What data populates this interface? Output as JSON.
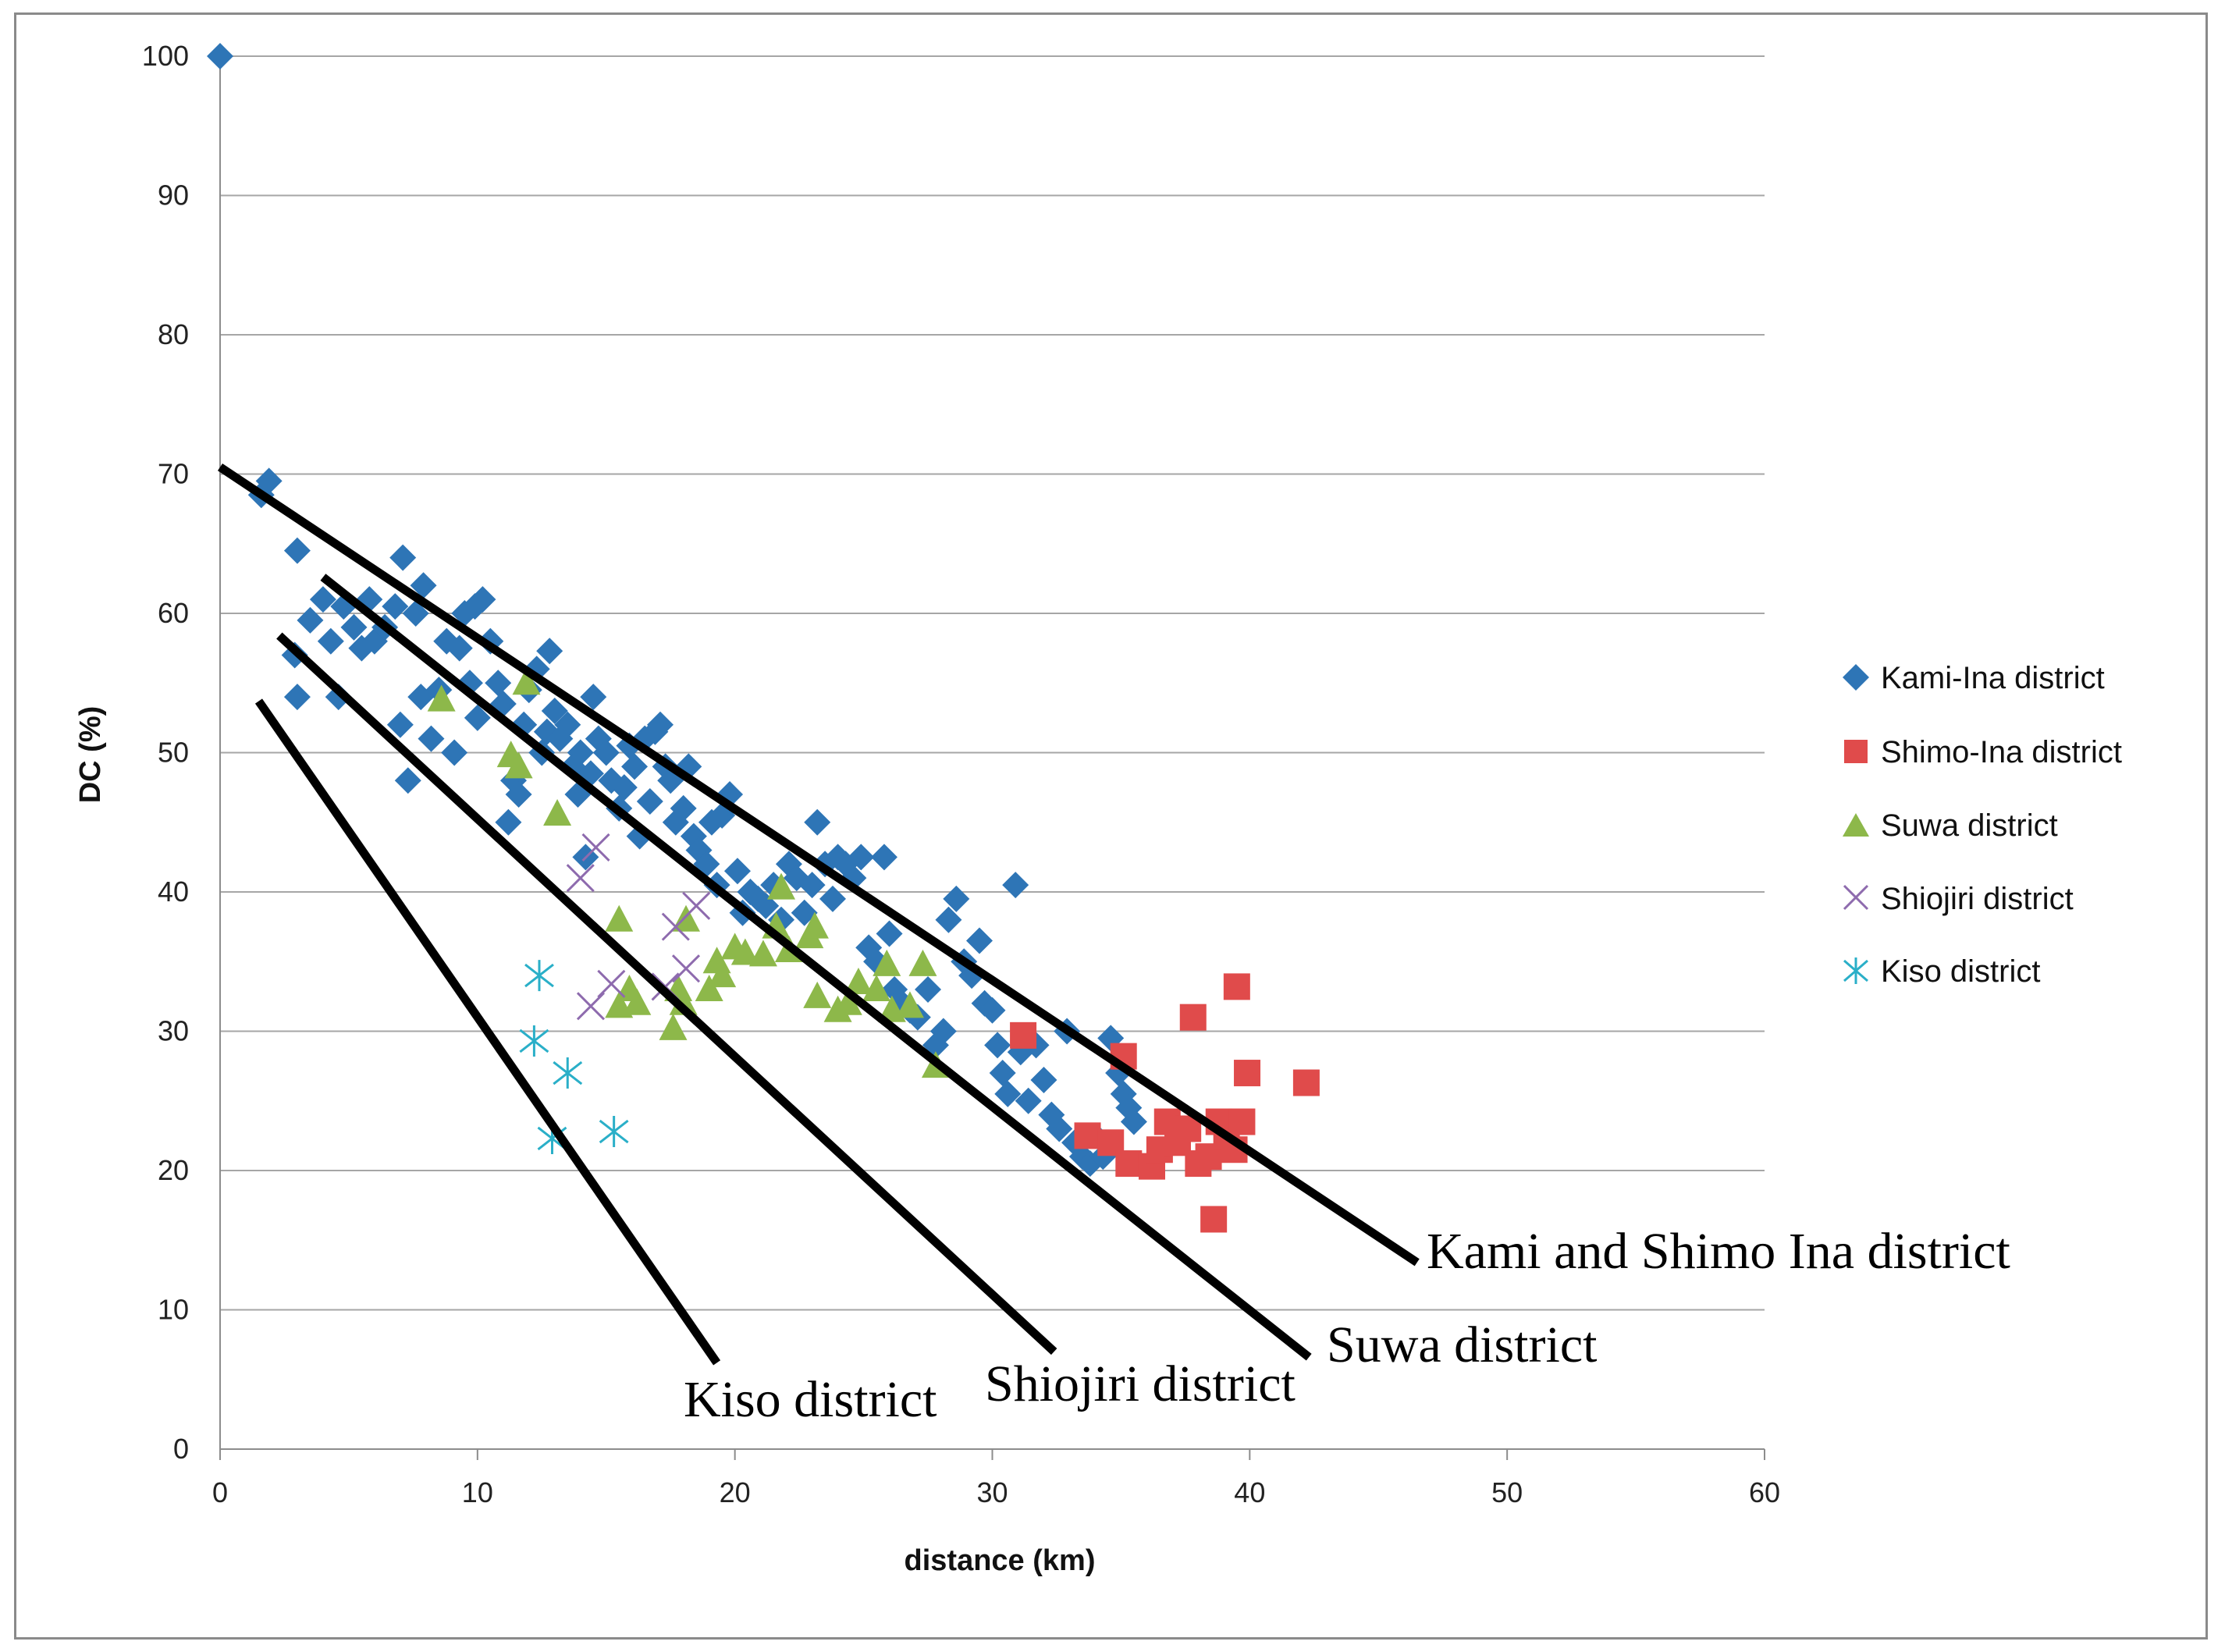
{
  "chart_data": {
    "type": "scatter",
    "title": "",
    "xlabel": "distance (km)",
    "ylabel": "DC (%)",
    "xlim": [
      0,
      60
    ],
    "ylim": [
      0,
      100
    ],
    "x_ticks": [
      "0",
      "10",
      "20",
      "30",
      "40",
      "50",
      "60"
    ],
    "y_ticks": [
      "0",
      "10",
      "20",
      "30",
      "40",
      "50",
      "60",
      "70",
      "80",
      "90",
      "100"
    ],
    "grid": "horizontal",
    "legend_position": "right",
    "series": [
      {
        "name": "Kami-Ina district",
        "marker": "diamond",
        "color": "#2E75B6",
        "points": [
          [
            0,
            100
          ],
          [
            1.6,
            68.5
          ],
          [
            1.9,
            69.5
          ],
          [
            3,
            64.5
          ],
          [
            2.9,
            57
          ],
          [
            3,
            54
          ],
          [
            3.5,
            59.5
          ],
          [
            4,
            61
          ],
          [
            4.3,
            58
          ],
          [
            4.6,
            54
          ],
          [
            4.8,
            60.5
          ],
          [
            5.2,
            59
          ],
          [
            5.5,
            57.5
          ],
          [
            5.8,
            61
          ],
          [
            6,
            58
          ],
          [
            6.4,
            59
          ],
          [
            6.8,
            60.5
          ],
          [
            7.1,
            64
          ],
          [
            7,
            52
          ],
          [
            7.3,
            48
          ],
          [
            7.6,
            60
          ],
          [
            7.8,
            54
          ],
          [
            7.9,
            62
          ],
          [
            8.2,
            51
          ],
          [
            8.5,
            54.5
          ],
          [
            8.8,
            58
          ],
          [
            9.1,
            50
          ],
          [
            9.3,
            57.5
          ],
          [
            9.5,
            60
          ],
          [
            9.7,
            55
          ],
          [
            9.9,
            60.5
          ],
          [
            10,
            52.5
          ],
          [
            10.2,
            61
          ],
          [
            10.5,
            58
          ],
          [
            10.8,
            55
          ],
          [
            11,
            53.5
          ],
          [
            11.2,
            45
          ],
          [
            11.4,
            48
          ],
          [
            11.6,
            47
          ],
          [
            11.8,
            52
          ],
          [
            12,
            54.5
          ],
          [
            12.3,
            56
          ],
          [
            12.5,
            50
          ],
          [
            12.7,
            51.5
          ],
          [
            12.8,
            57.3
          ],
          [
            13,
            53
          ],
          [
            13.2,
            51
          ],
          [
            13.5,
            52
          ],
          [
            13.7,
            49
          ],
          [
            13.9,
            47
          ],
          [
            14,
            50
          ],
          [
            14.2,
            42.5
          ],
          [
            14.4,
            48.5
          ],
          [
            14.5,
            54
          ],
          [
            14.7,
            51
          ],
          [
            15,
            50
          ],
          [
            15.2,
            48
          ],
          [
            15.5,
            46
          ],
          [
            15.7,
            47.5
          ],
          [
            15.9,
            50.5
          ],
          [
            16.1,
            49
          ],
          [
            16.3,
            44
          ],
          [
            16.5,
            51
          ],
          [
            16.7,
            46.5
          ],
          [
            16.9,
            51.5
          ],
          [
            17.1,
            52
          ],
          [
            17.3,
            49
          ],
          [
            17.5,
            48
          ],
          [
            17.7,
            45
          ],
          [
            18,
            46
          ],
          [
            18.2,
            49
          ],
          [
            18.4,
            44
          ],
          [
            18.6,
            43
          ],
          [
            18.9,
            42
          ],
          [
            19.1,
            45
          ],
          [
            19.3,
            40.5
          ],
          [
            19.5,
            45.5
          ],
          [
            19.8,
            47
          ],
          [
            20.1,
            41.5
          ],
          [
            20.3,
            38.5
          ],
          [
            20.6,
            40
          ],
          [
            20.9,
            39.5
          ],
          [
            21.2,
            39
          ],
          [
            21.5,
            40.5
          ],
          [
            21.8,
            38
          ],
          [
            22.1,
            42
          ],
          [
            22.4,
            41
          ],
          [
            22.7,
            38.5
          ],
          [
            23,
            40.5
          ],
          [
            23.2,
            45
          ],
          [
            23.5,
            42
          ],
          [
            23.8,
            39.5
          ],
          [
            24,
            42.5
          ],
          [
            24.3,
            42
          ],
          [
            24.6,
            41
          ],
          [
            24.9,
            42.5
          ],
          [
            25.2,
            36
          ],
          [
            25.5,
            35
          ],
          [
            25.8,
            42.5
          ],
          [
            26,
            37
          ],
          [
            26.2,
            33
          ],
          [
            26.5,
            32
          ],
          [
            26.8,
            31.5
          ],
          [
            27.1,
            31
          ],
          [
            27.5,
            33
          ],
          [
            27.8,
            29
          ],
          [
            28.1,
            30
          ],
          [
            28.3,
            38
          ],
          [
            28.6,
            39.5
          ],
          [
            28.9,
            35
          ],
          [
            29.2,
            34
          ],
          [
            29.5,
            36.5
          ],
          [
            29.7,
            32
          ],
          [
            30,
            31.5
          ],
          [
            30.2,
            29
          ],
          [
            30.4,
            27
          ],
          [
            30.6,
            25.5
          ],
          [
            30.9,
            40.5
          ],
          [
            31.1,
            28.5
          ],
          [
            31.4,
            25
          ],
          [
            31.7,
            29
          ],
          [
            32,
            26.5
          ],
          [
            32.3,
            24
          ],
          [
            32.6,
            23
          ],
          [
            32.9,
            30
          ],
          [
            33.2,
            22
          ],
          [
            33.5,
            21
          ],
          [
            33.8,
            20.5
          ],
          [
            34,
            22.5
          ],
          [
            34.3,
            21
          ],
          [
            34.6,
            29.5
          ],
          [
            34.9,
            27
          ],
          [
            35.1,
            25.5
          ],
          [
            35.3,
            24.5
          ],
          [
            35.5,
            23.5
          ]
        ]
      },
      {
        "name": "Shimo-Ina district",
        "marker": "square",
        "color": "#E04B4B",
        "points": [
          [
            31.2,
            29.7
          ],
          [
            33.7,
            22.5
          ],
          [
            34.6,
            22
          ],
          [
            35.1,
            28.2
          ],
          [
            35.3,
            20.5
          ],
          [
            36.2,
            20.3
          ],
          [
            36.5,
            21.5
          ],
          [
            36.8,
            23.5
          ],
          [
            37.2,
            22
          ],
          [
            37.6,
            23
          ],
          [
            37.8,
            31
          ],
          [
            38,
            20.5
          ],
          [
            38.4,
            21
          ],
          [
            38.6,
            16.5
          ],
          [
            38.8,
            23.5
          ],
          [
            39.1,
            22.5
          ],
          [
            39.4,
            21.5
          ],
          [
            39.5,
            33.2
          ],
          [
            39.7,
            23.5
          ],
          [
            39.9,
            27
          ],
          [
            42.2,
            26.3
          ]
        ]
      },
      {
        "name": "Suwa district",
        "marker": "triangle",
        "color": "#8DB84A",
        "points": [
          [
            8.6,
            53.8
          ],
          [
            11.3,
            49.8
          ],
          [
            11.6,
            49
          ],
          [
            11.9,
            55
          ],
          [
            13.1,
            45.6
          ],
          [
            15.5,
            38
          ],
          [
            15.5,
            31.8
          ],
          [
            15.9,
            33
          ],
          [
            16.2,
            32
          ],
          [
            17.6,
            30.2
          ],
          [
            17.8,
            33
          ],
          [
            18,
            32
          ],
          [
            18.1,
            38
          ],
          [
            19,
            33
          ],
          [
            19.3,
            35
          ],
          [
            19.5,
            34
          ],
          [
            20,
            36
          ],
          [
            20.4,
            35.6
          ],
          [
            21.1,
            35.5
          ],
          [
            21.6,
            37.5
          ],
          [
            21.8,
            40.3
          ],
          [
            22.1,
            35.8
          ],
          [
            22.9,
            36.8
          ],
          [
            23.1,
            37.5
          ],
          [
            23.2,
            32.5
          ],
          [
            24,
            31.5
          ],
          [
            24.4,
            32
          ],
          [
            24.8,
            33.5
          ],
          [
            25.5,
            33
          ],
          [
            25.9,
            34.8
          ],
          [
            26.1,
            31.5
          ],
          [
            26.8,
            31.8
          ],
          [
            27.3,
            34.8
          ],
          [
            27.8,
            27.5
          ]
        ]
      },
      {
        "name": "Shiojiri district",
        "marker": "x",
        "color": "#8E6BAE",
        "points": [
          [
            14,
            41
          ],
          [
            14.6,
            43.2
          ],
          [
            14.4,
            31.8
          ],
          [
            15.2,
            33.4
          ],
          [
            17.3,
            33.2
          ],
          [
            17.7,
            37.5
          ],
          [
            18.1,
            34.5
          ],
          [
            18.5,
            39
          ]
        ]
      },
      {
        "name": "Kiso district",
        "marker": "asterisk",
        "color": "#2AAFC8",
        "points": [
          [
            12.4,
            34
          ],
          [
            12.2,
            29.3
          ],
          [
            13.5,
            27
          ],
          [
            12.9,
            22.3
          ],
          [
            15.3,
            22.8
          ]
        ]
      }
    ],
    "trend_lines": [
      {
        "label": "Kami and Shimo Ina district",
        "from": [
          0,
          70.5
        ],
        "to": [
          46.5,
          13.4
        ]
      },
      {
        "label": "Suwa district",
        "from": [
          4,
          62.6
        ],
        "to": [
          42.3,
          6.6
        ]
      },
      {
        "label": "Shiojiri district",
        "from": [
          2.3,
          58.4
        ],
        "to": [
          32.4,
          7
        ]
      },
      {
        "label": "Kiso district",
        "from": [
          1.5,
          53.7
        ],
        "to": [
          19.3,
          6.2
        ]
      }
    ]
  }
}
